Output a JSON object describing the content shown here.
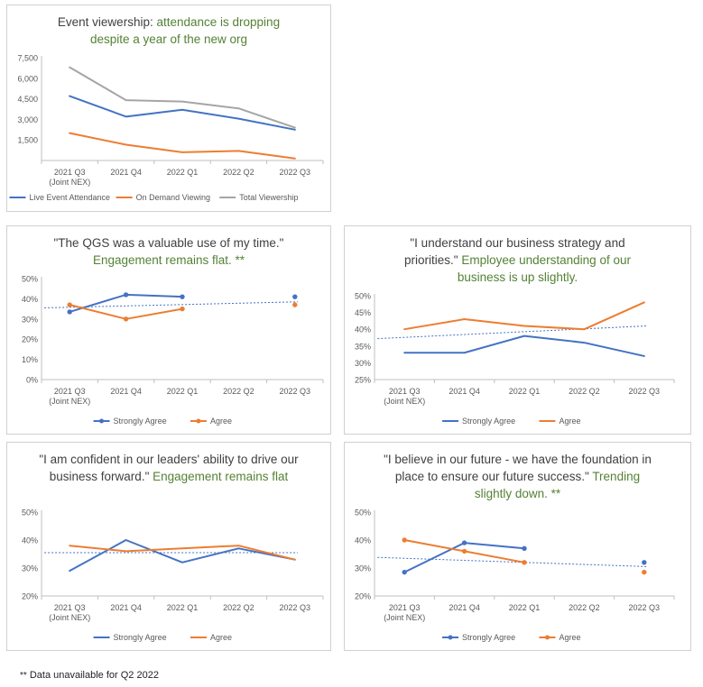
{
  "chart_data": [
    {
      "id": "viewership",
      "type": "line",
      "title_main": "Event viewership: ",
      "title_highlight": "attendance is dropping despite a year of the new org",
      "categories": [
        "2021 Q3\n(Joint NEX)",
        "2021 Q4",
        "2022 Q1",
        "2022 Q2",
        "2022 Q3"
      ],
      "ylim": [
        0,
        7500
      ],
      "yticks": [
        "",
        "1,500",
        "3,000",
        "4,500",
        "6,000",
        "7,500"
      ],
      "ytick_values": [
        0,
        1500,
        3000,
        4500,
        6000,
        7500
      ],
      "series": [
        {
          "name": "Live Event Attendance",
          "color": "#4472C4",
          "values": [
            4700,
            3200,
            3700,
            3050,
            2250
          ],
          "markers": false
        },
        {
          "name": "On Demand Viewing",
          "color": "#ED7D31",
          "values": [
            2000,
            1150,
            600,
            700,
            150
          ],
          "markers": false
        },
        {
          "name": "Total Viewership",
          "color": "#A5A5A5",
          "values": [
            6800,
            4400,
            4300,
            3800,
            2400
          ],
          "markers": false
        }
      ],
      "trendlines": [],
      "legend": "bottom"
    },
    {
      "id": "qgs",
      "type": "line",
      "title_main": "\"The QGS was a valuable use of my time.\"",
      "title_highlight": "Engagement remains flat. **",
      "categories": [
        "2021 Q3\n(Joint NEX)",
        "2021 Q4",
        "2022 Q1",
        "2022 Q2",
        "2022 Q3"
      ],
      "ylim": [
        0,
        50
      ],
      "yticks": [
        "0%",
        "10%",
        "20%",
        "30%",
        "40%",
        "50%"
      ],
      "ytick_values": [
        0,
        10,
        20,
        30,
        40,
        50
      ],
      "series": [
        {
          "name": "Strongly Agree",
          "color": "#4472C4",
          "values": [
            33.5,
            42,
            41,
            null,
            41
          ],
          "markers": true
        },
        {
          "name": "Agree",
          "color": "#ED7D31",
          "values": [
            37,
            30,
            35,
            null,
            37
          ],
          "markers": true
        }
      ],
      "trendlines": [
        {
          "color": "#4472C4",
          "start": 35.5,
          "end": 38.5
        }
      ],
      "legend": "bottom"
    },
    {
      "id": "strategy",
      "type": "line",
      "title_main": "\"I understand our business strategy and priorities.\"",
      "title_highlight": "Employee understanding of our business is up slightly.",
      "categories": [
        "2021 Q3\n(Joint NEX)",
        "2021 Q4",
        "2022 Q1",
        "2022 Q2",
        "2022 Q3"
      ],
      "ylim": [
        25,
        50
      ],
      "yticks": [
        "25%",
        "30%",
        "35%",
        "40%",
        "45%",
        "50%"
      ],
      "ytick_values": [
        25,
        30,
        35,
        40,
        45,
        50
      ],
      "series": [
        {
          "name": "Strongly Agree",
          "color": "#4472C4",
          "values": [
            33,
            33,
            38,
            36,
            32
          ],
          "markers": false
        },
        {
          "name": "Agree",
          "color": "#ED7D31",
          "values": [
            40,
            43,
            41,
            40,
            48
          ],
          "markers": false
        }
      ],
      "trendlines": [
        {
          "color": "#4472C4",
          "start": 37.2,
          "end": 41
        }
      ],
      "legend": "bottom"
    },
    {
      "id": "leaders",
      "type": "line",
      "title_main": "\"I am confident in our leaders' ability to drive our business forward.\"",
      "title_highlight": "Engagement remains flat",
      "categories": [
        "2021 Q3\n(Joint NEX)",
        "2021 Q4",
        "2022 Q1",
        "2022 Q2",
        "2022 Q3"
      ],
      "ylim": [
        20,
        50
      ],
      "yticks": [
        "20%",
        "30%",
        "40%",
        "50%"
      ],
      "ytick_values": [
        20,
        30,
        40,
        50
      ],
      "series": [
        {
          "name": "Strongly Agree",
          "color": "#4472C4",
          "values": [
            29,
            40,
            32,
            37,
            33
          ],
          "markers": false
        },
        {
          "name": "Agree",
          "color": "#ED7D31",
          "values": [
            38,
            36,
            37,
            38,
            33
          ],
          "markers": false
        }
      ],
      "trendlines": [
        {
          "color": "#4472C4",
          "start": 35.5,
          "end": 35.5
        }
      ],
      "legend": "bottom"
    },
    {
      "id": "future",
      "type": "line",
      "title_main": "\"I believe in our future - we have the foundation in place to ensure our future success.\"",
      "title_highlight": "Trending slightly down. **",
      "categories": [
        "2021 Q3\n(Joint NEX)",
        "2021 Q4",
        "2022 Q1",
        "2022 Q2",
        "2022 Q3"
      ],
      "ylim": [
        20,
        50
      ],
      "yticks": [
        "20%",
        "30%",
        "40%",
        "50%"
      ],
      "ytick_values": [
        20,
        30,
        40,
        50
      ],
      "series": [
        {
          "name": "Strongly Agree",
          "color": "#4472C4",
          "values": [
            28.5,
            39,
            37,
            null,
            32
          ],
          "markers": true
        },
        {
          "name": "Agree",
          "color": "#ED7D31",
          "values": [
            40,
            36,
            32,
            null,
            28.5
          ],
          "markers": true
        }
      ],
      "trendlines": [
        {
          "color": "#4472C4",
          "start": 33.8,
          "end": 30.5
        }
      ],
      "legend": "bottom"
    }
  ],
  "footnote": {
    "stars": "**",
    "text": " Data unavailable for Q2 2022"
  }
}
